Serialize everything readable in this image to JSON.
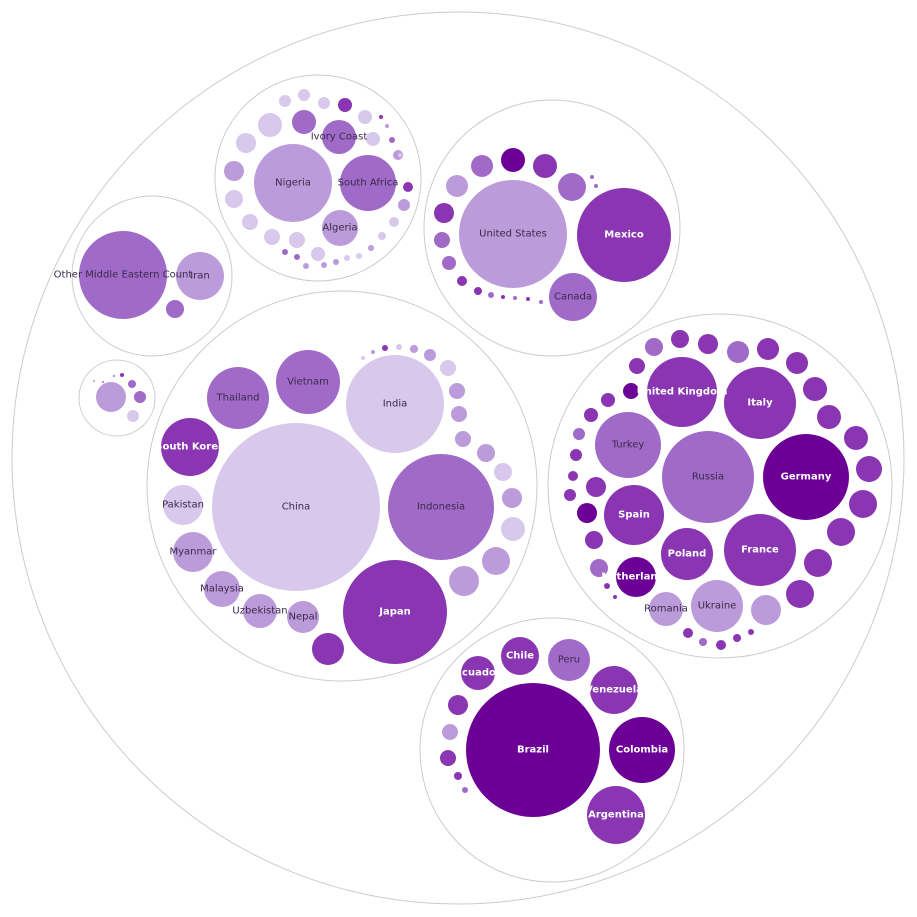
{
  "chart_data": {
    "type": "circle-packing",
    "title": "",
    "color_scale": [
      "#d8c8ec",
      "#bb9bd9",
      "#a06ac8",
      "#8a35b2",
      "#6c0096"
    ],
    "groups": [
      {
        "labeled": [
          {
            "name": "China",
            "level": 0
          },
          {
            "name": "India",
            "level": 0
          },
          {
            "name": "Japan",
            "level": 3
          },
          {
            "name": "Indonesia",
            "level": 2
          },
          {
            "name": "Thailand",
            "level": 2
          },
          {
            "name": "Vietnam",
            "level": 2
          },
          {
            "name": "South Korea",
            "level": 3
          },
          {
            "name": "Pakistan",
            "level": 0
          },
          {
            "name": "Myanmar",
            "level": 1
          },
          {
            "name": "Malaysia",
            "level": 1
          },
          {
            "name": "Uzbekistan",
            "level": 1
          },
          {
            "name": "Nepal",
            "level": 1
          }
        ]
      },
      {
        "labeled": [
          {
            "name": "Russia",
            "level": 2
          },
          {
            "name": "Germany",
            "level": 4
          },
          {
            "name": "Italy",
            "level": 3
          },
          {
            "name": "United Kingdom",
            "level": 3
          },
          {
            "name": "France",
            "level": 3
          },
          {
            "name": "Turkey",
            "level": 2
          },
          {
            "name": "Spain",
            "level": 3
          },
          {
            "name": "Poland",
            "level": 3
          },
          {
            "name": "Netherlands",
            "level": 4
          },
          {
            "name": "Ukraine",
            "level": 1
          },
          {
            "name": "Romania",
            "level": 1
          }
        ]
      },
      {
        "labeled": [
          {
            "name": "Brazil",
            "level": 4
          },
          {
            "name": "Colombia",
            "level": 4
          },
          {
            "name": "Argentina",
            "level": 3
          },
          {
            "name": "Venezuela",
            "level": 3
          },
          {
            "name": "Peru",
            "level": 2
          },
          {
            "name": "Chile",
            "level": 3
          },
          {
            "name": "Ecuador",
            "level": 3
          }
        ]
      },
      {
        "labeled": [
          {
            "name": "United States",
            "level": 1
          },
          {
            "name": "Mexico",
            "level": 3
          },
          {
            "name": "Canada",
            "level": 2
          }
        ]
      },
      {
        "labeled": [
          {
            "name": "Nigeria",
            "level": 1
          },
          {
            "name": "South Africa",
            "level": 2
          },
          {
            "name": "Ivory Coast",
            "level": 2
          },
          {
            "name": "Algeria",
            "level": 1
          }
        ]
      },
      {
        "labeled": [
          {
            "name": "Other Middle Eastern Count",
            "level": 2
          },
          {
            "name": "Iran",
            "level": 1
          }
        ]
      },
      {
        "labeled": []
      }
    ]
  }
}
